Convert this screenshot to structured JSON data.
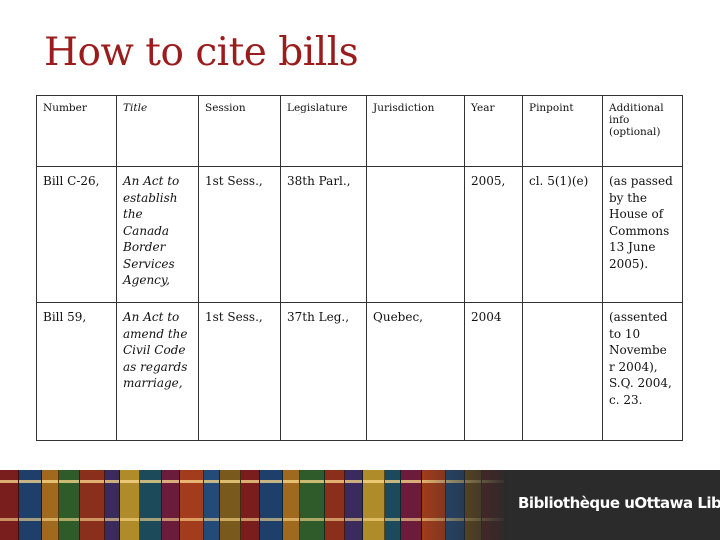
{
  "slide": {
    "title": "How to cite bills"
  },
  "table": {
    "headers": {
      "number": "Number",
      "title": "Title",
      "session": "Session",
      "legislature": "Legislature",
      "jurisdiction": "Jurisdiction",
      "year": "Year",
      "pinpoint": "Pinpoint",
      "additional": "Additional info (optional)"
    },
    "rows": [
      {
        "number": "Bill C-26,",
        "title": "An Act to establish the Canada Border Services Agency,",
        "session": "1st Sess.,",
        "legislature": "38th Parl.,",
        "jurisdiction": "",
        "year": "2005,",
        "pinpoint": "cl. 5(1)(e)",
        "additional": "(as passed by the House of Commons 13 June 2005)."
      },
      {
        "number": "Bill 59,",
        "title": "An Act to amend the Civil Code as regards marriage,",
        "session": "1st Sess.,",
        "legislature": "37th Leg.,",
        "jurisdiction": "Quebec,",
        "year": "2004",
        "pinpoint": "",
        "additional": "(assented to 10 Novembe r 2004), S.Q. 2004, c. 23."
      }
    ]
  },
  "footer": {
    "library_name": "Bibliothèque uOttawa Library",
    "colors": {
      "title": "#9b1c1c",
      "band": "#2b2b2b",
      "book_spines": [
        "#7a1d1d",
        "#1f3f6b",
        "#a06a1e",
        "#2f5a2a",
        "#8a2f1c",
        "#3b2b5c",
        "#b08b2a",
        "#1c4a5a",
        "#6b1c3a",
        "#a33c1c",
        "#244a7a",
        "#7a5a1c"
      ]
    }
  }
}
